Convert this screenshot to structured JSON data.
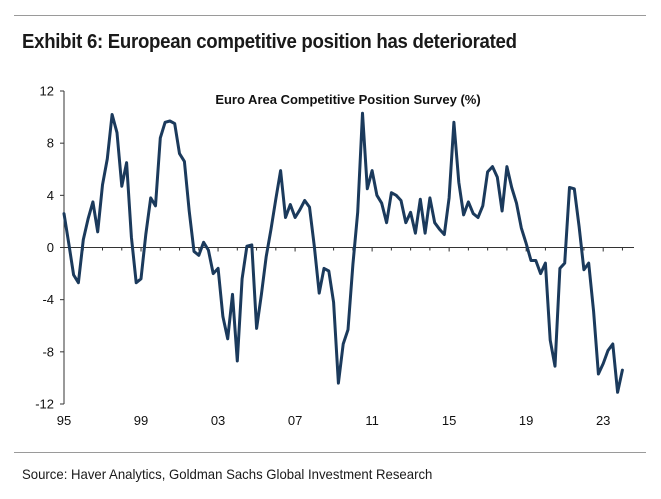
{
  "exhibit_title": "Exhibit 6: European competitive position has deteriorated",
  "source": "Source: Haver Analytics, Goldman Sachs Global Investment Research",
  "colors": {
    "line": "#1b3a5c",
    "axis": "#333333",
    "rule": "#9a9a9a"
  },
  "chart_data": {
    "type": "line",
    "title": "Euro Area Competitive Position Survey (%)",
    "xlabel": "",
    "ylabel": "",
    "xlim": [
      1995,
      2024.6
    ],
    "ylim": [
      -12,
      12
    ],
    "yticks": [
      12,
      8,
      4,
      0,
      -4,
      -8,
      -12
    ],
    "ytick_labels": [
      "12",
      "8",
      "4",
      "0",
      "-4",
      "-8",
      "-12"
    ],
    "xticks": [
      1995,
      1999,
      2003,
      2007,
      2011,
      2015,
      2019,
      2023
    ],
    "xtick_labels": [
      "95",
      "99",
      "03",
      "07",
      "11",
      "15",
      "19",
      "23"
    ],
    "grid": false,
    "series": [
      {
        "name": "Euro Area Competitive Position Survey",
        "x": [
          1995.0,
          1995.25,
          1995.5,
          1995.75,
          1996.0,
          1996.25,
          1996.5,
          1996.75,
          1997.0,
          1997.25,
          1997.5,
          1997.75,
          1998.0,
          1998.25,
          1998.5,
          1998.75,
          1999.0,
          1999.25,
          1999.5,
          1999.75,
          2000.0,
          2000.25,
          2000.5,
          2000.75,
          2001.0,
          2001.25,
          2001.5,
          2001.75,
          2002.0,
          2002.25,
          2002.5,
          2002.75,
          2003.0,
          2003.25,
          2003.5,
          2003.75,
          2004.0,
          2004.25,
          2004.5,
          2004.75,
          2005.0,
          2005.25,
          2005.5,
          2005.75,
          2006.0,
          2006.25,
          2006.5,
          2006.75,
          2007.0,
          2007.25,
          2007.5,
          2007.75,
          2008.0,
          2008.25,
          2008.5,
          2008.75,
          2009.0,
          2009.25,
          2009.5,
          2009.75,
          2010.0,
          2010.25,
          2010.5,
          2010.75,
          2011.0,
          2011.25,
          2011.5,
          2011.75,
          2012.0,
          2012.25,
          2012.5,
          2012.75,
          2013.0,
          2013.25,
          2013.5,
          2013.75,
          2014.0,
          2014.25,
          2014.5,
          2014.75,
          2015.0,
          2015.25,
          2015.5,
          2015.75,
          2016.0,
          2016.25,
          2016.5,
          2016.75,
          2017.0,
          2017.25,
          2017.5,
          2017.75,
          2018.0,
          2018.25,
          2018.5,
          2018.75,
          2019.0,
          2019.25,
          2019.5,
          2019.75,
          2020.0,
          2020.25,
          2020.5,
          2020.75,
          2021.0,
          2021.25,
          2021.5,
          2021.75,
          2022.0,
          2022.25,
          2022.5,
          2022.75,
          2023.0,
          2023.25,
          2023.5,
          2023.75,
          2024.0
        ],
        "values": [
          2.6,
          0.3,
          -2.1,
          -2.7,
          0.6,
          2.2,
          3.5,
          1.2,
          4.8,
          6.8,
          10.2,
          8.8,
          4.7,
          6.5,
          0.8,
          -2.7,
          -2.4,
          1.0,
          3.8,
          3.2,
          8.4,
          9.6,
          9.7,
          9.5,
          7.2,
          6.6,
          2.8,
          -0.3,
          -0.6,
          0.4,
          -0.2,
          -2.0,
          -1.6,
          -5.3,
          -7.0,
          -3.6,
          -8.7,
          -2.4,
          0.1,
          0.2,
          -6.2,
          -3.6,
          -0.7,
          1.4,
          3.7,
          5.9,
          2.3,
          3.3,
          2.3,
          2.9,
          3.6,
          3.1,
          0.1,
          -3.5,
          -1.6,
          -1.8,
          -4.2,
          -10.4,
          -7.4,
          -6.3,
          -1.3,
          2.7,
          10.3,
          4.5,
          5.9,
          4.0,
          3.4,
          1.9,
          4.2,
          4.0,
          3.6,
          1.9,
          2.7,
          1.1,
          3.7,
          1.1,
          3.8,
          1.9,
          1.4,
          1.0,
          3.8,
          9.6,
          5.0,
          2.5,
          3.5,
          2.6,
          2.3,
          3.2,
          5.8,
          6.2,
          5.4,
          2.8,
          6.2,
          4.6,
          3.4,
          1.5,
          0.3,
          -1.0,
          -1.0,
          -2.0,
          -1.2,
          -7.1,
          -9.1,
          -1.6,
          -1.2,
          4.6,
          4.5,
          1.6,
          -1.7,
          -1.2,
          -4.9,
          -9.7,
          -8.9,
          -7.9,
          -7.4,
          -11.1,
          -9.4
        ]
      }
    ]
  }
}
